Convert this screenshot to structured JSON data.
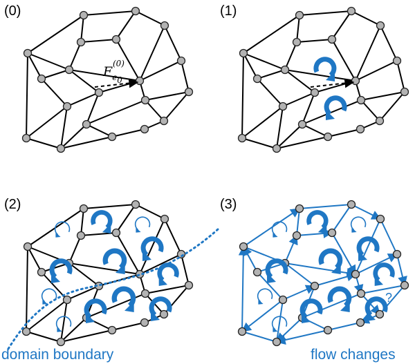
{
  "panels": [
    {
      "label": "(0)"
    },
    {
      "label": "(1)"
    },
    {
      "label": "(2)"
    },
    {
      "label": "(3)"
    }
  ],
  "flow_label": {
    "base": "F",
    "subscript": "e",
    "subsub": "0",
    "superscript": "(0)"
  },
  "captions": {
    "left": "domain boundary",
    "right": "flow changes"
  },
  "question_mark": "?",
  "colors": {
    "accent": "#1f77c4",
    "node_fill": "#b3b3b3",
    "edge": "#000000"
  }
}
